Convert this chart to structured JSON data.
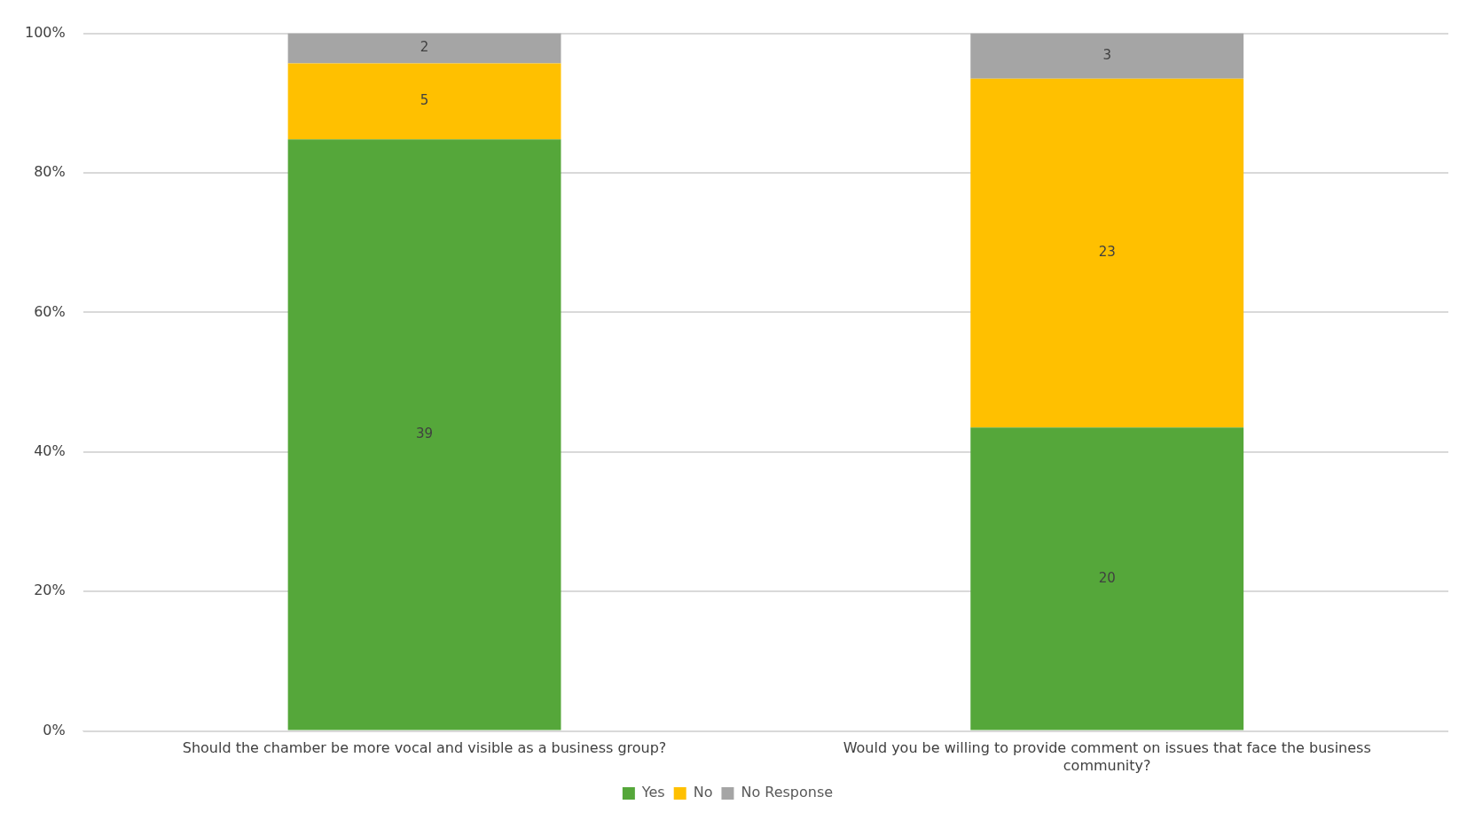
{
  "chart_data": {
    "type": "bar",
    "stacked": true,
    "categories": [
      "Should the chamber be more vocal and visible as a business group?",
      "Would you be willing to provide comment on issues that face the business community?"
    ],
    "series": [
      {
        "name": "Yes",
        "color": "#55a73a",
        "values": [
          84.8,
          43.5
        ]
      },
      {
        "name": "No",
        "color": "#ffc000",
        "values": [
          10.9,
          50.0
        ]
      },
      {
        "name": "No Response",
        "color": "#a5a5a5",
        "values": [
          4.3,
          6.5
        ]
      }
    ],
    "annotations": [
      "39",
      "5",
      "2",
      "20",
      "23",
      "3"
    ],
    "ylim": [
      0,
      100
    ],
    "yticks": [
      {
        "value": 0,
        "label": "0%"
      },
      {
        "value": 20,
        "label": "20%"
      },
      {
        "value": 40,
        "label": "40%"
      },
      {
        "value": 60,
        "label": "60%"
      },
      {
        "value": 80,
        "label": "80%"
      },
      {
        "value": 100,
        "label": "100%"
      }
    ],
    "grid": "y",
    "legend": "bottom"
  }
}
